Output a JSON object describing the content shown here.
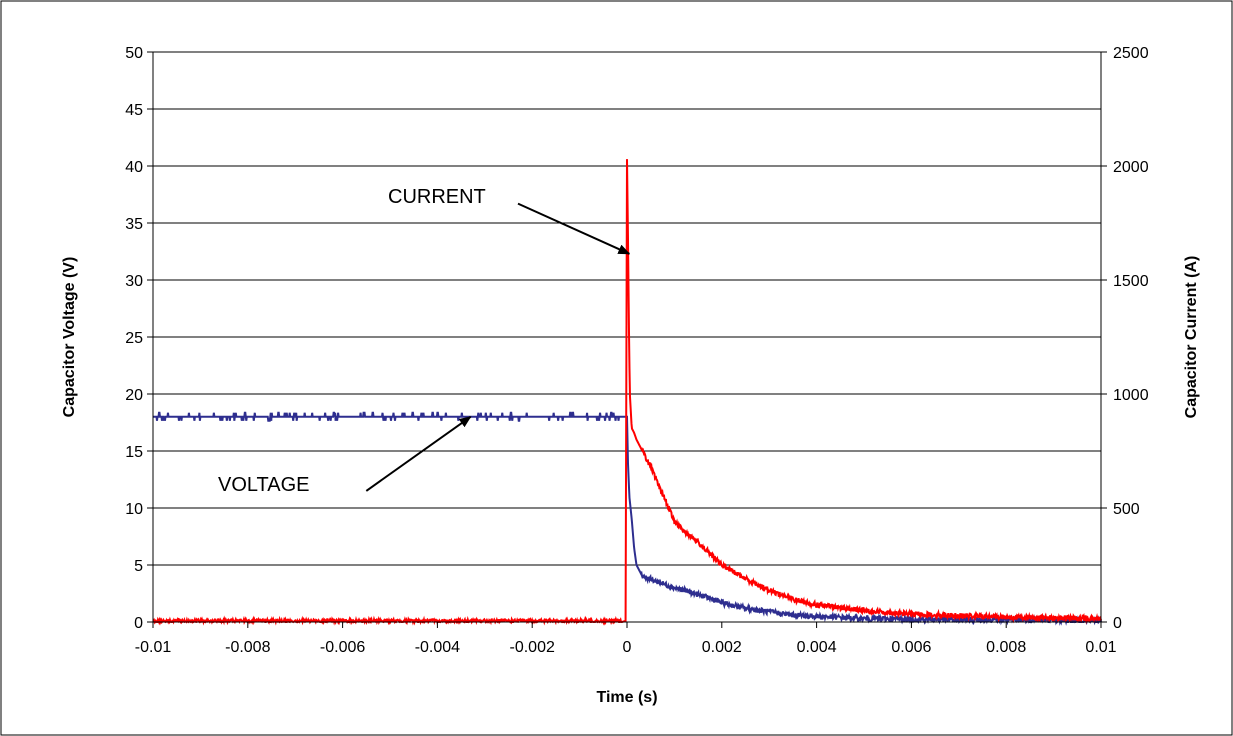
{
  "chart_data": {
    "type": "line",
    "xlabel": "Time (s)",
    "ylabel_left": "Capacitor Voltage (V)",
    "ylabel_right": "Capacitor Current (A)",
    "xlim": [
      -0.01,
      0.01
    ],
    "ylim_left": [
      0,
      50
    ],
    "ylim_right": [
      0,
      2500
    ],
    "x_ticks": [
      "-0.01",
      "-0.008",
      "-0.006",
      "-0.004",
      "-0.002",
      "0",
      "0.002",
      "0.004",
      "0.006",
      "0.008",
      "0.01"
    ],
    "y_left_ticks": [
      "0",
      "5",
      "10",
      "15",
      "20",
      "25",
      "30",
      "35",
      "40",
      "45",
      "50"
    ],
    "y_right_ticks": [
      "0",
      "500",
      "1000",
      "1500",
      "2000",
      "2500"
    ],
    "grid": "horizontal",
    "colors": {
      "voltage": "#2e2e8f",
      "current": "#ff0000"
    },
    "series": [
      {
        "key": "voltage",
        "axis": "left",
        "x": [
          -0.01,
          -0.008,
          -0.006,
          -0.004,
          -0.002,
          -0.0001,
          0,
          2e-05,
          5e-05,
          0.0001,
          0.00015,
          0.0002,
          0.0003,
          0.0004,
          0.0006,
          0.0008,
          0.001,
          0.0012,
          0.0015,
          0.0018,
          0.002,
          0.0025,
          0.003,
          0.0035,
          0.004,
          0.005,
          0.006,
          0.007,
          0.008,
          0.009,
          0.01
        ],
        "y": [
          18.0,
          18.0,
          18.0,
          18.0,
          18.0,
          18.0,
          18.0,
          14.0,
          11.0,
          9.0,
          6.5,
          5.0,
          4.2,
          3.9,
          3.6,
          3.3,
          3.0,
          2.8,
          2.4,
          2.0,
          1.7,
          1.2,
          0.9,
          0.6,
          0.5,
          0.3,
          0.25,
          0.2,
          0.2,
          0.15,
          0.1
        ]
      },
      {
        "key": "current",
        "axis": "right",
        "x": [
          -0.01,
          -0.008,
          -0.006,
          -0.004,
          -0.002,
          -3e-05,
          0,
          2e-05,
          4e-05,
          6e-05,
          0.0001,
          0.00015,
          0.0002,
          0.0003,
          0.0004,
          0.0005,
          0.0006,
          0.0008,
          0.001,
          0.0012,
          0.0015,
          0.0018,
          0.002,
          0.0025,
          0.003,
          0.0035,
          0.004,
          0.005,
          0.006,
          0.007,
          0.008,
          0.009,
          0.01
        ],
        "y": [
          5,
          5,
          5,
          5,
          5,
          5,
          2030,
          1700,
          1300,
          1000,
          850,
          830,
          800,
          760,
          720,
          680,
          630,
          540,
          440,
          400,
          350,
          290,
          250,
          190,
          140,
          100,
          75,
          50,
          35,
          28,
          22,
          18,
          15
        ]
      }
    ],
    "annotations": [
      {
        "text": "CURRENT",
        "arrow_from": [
          -0.0023,
          1835
        ],
        "arrow_to": [
          5e-05,
          1615
        ]
      },
      {
        "text": "VOLTAGE",
        "arrow_from": [
          -0.0055,
          11.5
        ],
        "arrow_to": [
          -0.0033,
          18.0
        ]
      }
    ]
  }
}
